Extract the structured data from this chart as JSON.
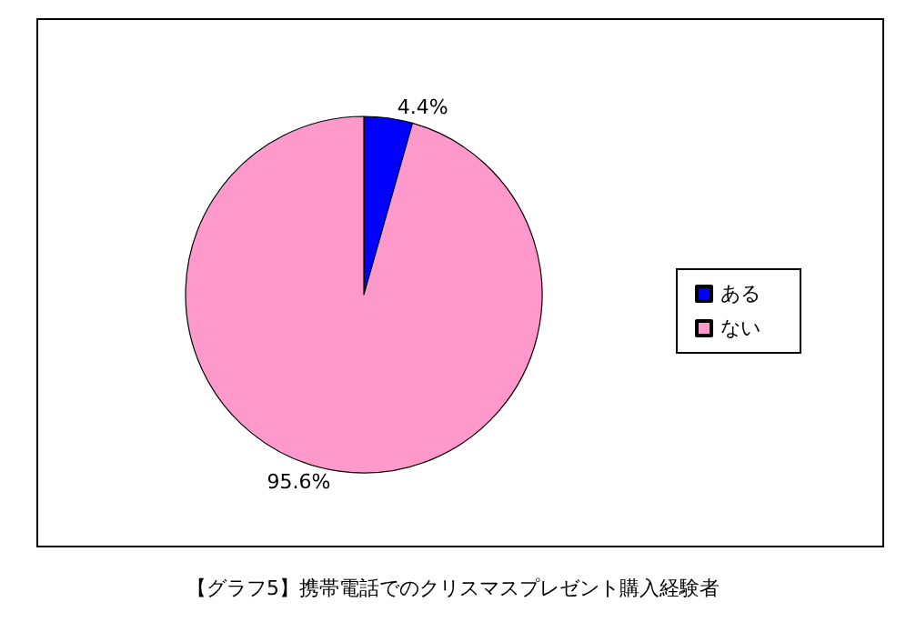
{
  "chart_data": {
    "type": "pie",
    "title": "【グラフ5】携帯電話でのクリスマスプレゼント購入経験者",
    "categories": [
      "ある",
      "ない"
    ],
    "values": [
      4.4,
      95.6
    ],
    "colors": [
      "#0000ff",
      "#ff99cc"
    ],
    "value_labels": [
      "4.4%",
      "95.6%"
    ],
    "legend": "right"
  }
}
